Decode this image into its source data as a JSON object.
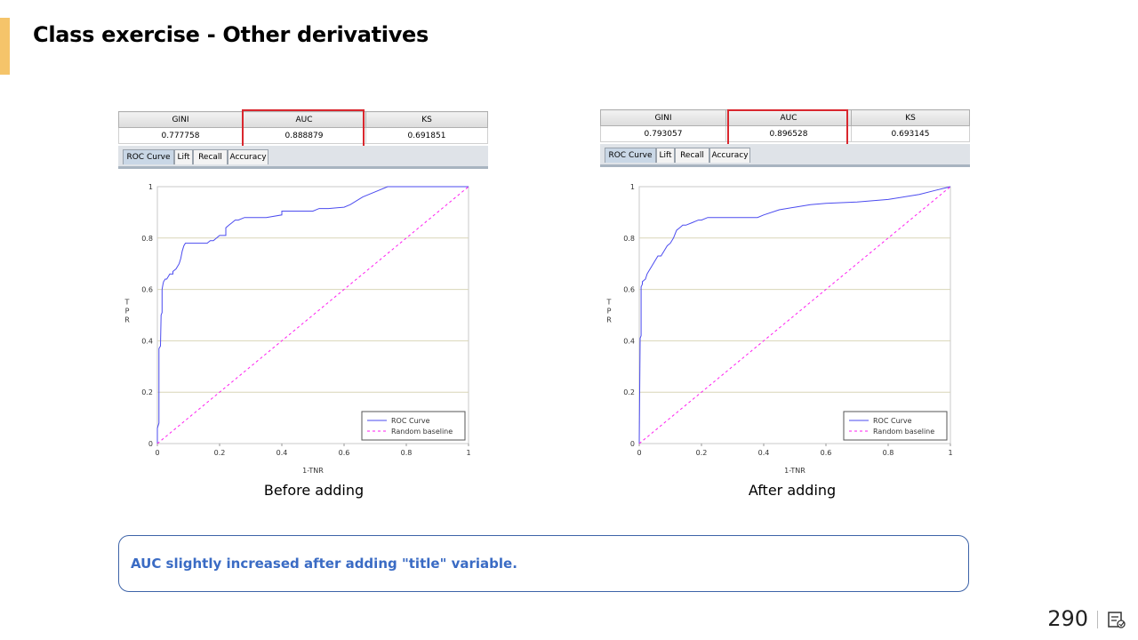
{
  "slide": {
    "title": "Class exercise - Other derivatives",
    "page_number": "290"
  },
  "panels": [
    {
      "caption": "Before adding",
      "metrics": {
        "headers": [
          "GINI",
          "AUC",
          "KS"
        ],
        "values": [
          "0.777758",
          "0.888879",
          "0.691851"
        ]
      },
      "tabs": [
        "ROC Curve",
        "Lift",
        "Recall",
        "Accuracy"
      ],
      "active_tab": "ROC Curve"
    },
    {
      "caption": "After adding",
      "metrics": {
        "headers": [
          "GINI",
          "AUC",
          "KS"
        ],
        "values": [
          "0.793057",
          "0.896528",
          "0.693145"
        ]
      },
      "tabs": [
        "ROC Curve",
        "Lift",
        "Recall",
        "Accuracy"
      ],
      "active_tab": "ROC Curve"
    }
  ],
  "note": {
    "text": "AUC slightly increased after adding \"title\" variable."
  },
  "colors": {
    "accent_bar": "#f5c46a",
    "highlight": "#d9272e",
    "roc_curve": "#4b4bef",
    "baseline": "#ff1ff0",
    "note_text": "#3a6bc4"
  },
  "chart_data": [
    {
      "type": "line",
      "xlabel": "1-TNR",
      "ylabel": "TPR",
      "xlim": [
        0,
        1
      ],
      "ylim": [
        0,
        1
      ],
      "xticks": [
        "0",
        "0.2",
        "0.4",
        "0.6",
        "0.8",
        "1"
      ],
      "yticks": [
        "0",
        "0.2",
        "0.4",
        "0.6",
        "0.8",
        "1"
      ],
      "grid": "horizontal",
      "legend_position": "bottom-right",
      "series": [
        {
          "name": "ROC Curve",
          "style": "solid",
          "x": [
            0,
            0,
            0.005,
            0.005,
            0.01,
            0.012,
            0.015,
            0.015,
            0.018,
            0.02,
            0.025,
            0.03,
            0.04,
            0.05,
            0.05,
            0.06,
            0.07,
            0.075,
            0.08,
            0.085,
            0.09,
            0.1,
            0.12,
            0.16,
            0.17,
            0.18,
            0.2,
            0.22,
            0.22,
            0.23,
            0.24,
            0.25,
            0.26,
            0.28,
            0.32,
            0.35,
            0.4,
            0.4,
            0.45,
            0.5,
            0.52,
            0.55,
            0.6,
            0.62,
            0.66,
            0.7,
            0.74,
            0.8,
            0.9,
            0.95,
            1.0
          ],
          "y": [
            0,
            0.06,
            0.08,
            0.37,
            0.38,
            0.5,
            0.51,
            0.6,
            0.62,
            0.63,
            0.64,
            0.64,
            0.66,
            0.66,
            0.67,
            0.68,
            0.7,
            0.72,
            0.75,
            0.77,
            0.78,
            0.78,
            0.78,
            0.78,
            0.79,
            0.79,
            0.81,
            0.81,
            0.84,
            0.85,
            0.86,
            0.87,
            0.87,
            0.88,
            0.88,
            0.88,
            0.89,
            0.905,
            0.905,
            0.905,
            0.915,
            0.915,
            0.92,
            0.93,
            0.96,
            0.98,
            1.0,
            1.0,
            1.0,
            1.0,
            1.0
          ]
        },
        {
          "name": "Random baseline",
          "style": "dashed",
          "x": [
            0,
            1
          ],
          "y": [
            0,
            1
          ]
        }
      ]
    },
    {
      "type": "line",
      "xlabel": "1-TNR",
      "ylabel": "TPR",
      "xlim": [
        0,
        1
      ],
      "ylim": [
        0,
        1
      ],
      "xticks": [
        "0",
        "0.2",
        "0.4",
        "0.6",
        "0.8",
        "1"
      ],
      "yticks": [
        "0",
        "0.2",
        "0.4",
        "0.6",
        "0.8",
        "1"
      ],
      "grid": "horizontal",
      "legend_position": "bottom-right",
      "series": [
        {
          "name": "ROC Curve",
          "style": "solid",
          "x": [
            0,
            0.003,
            0.003,
            0.006,
            0.006,
            0.01,
            0.01,
            0.02,
            0.025,
            0.03,
            0.04,
            0.05,
            0.06,
            0.07,
            0.08,
            0.09,
            0.1,
            0.11,
            0.12,
            0.13,
            0.14,
            0.15,
            0.17,
            0.19,
            0.2,
            0.22,
            0.25,
            0.3,
            0.38,
            0.4,
            0.45,
            0.5,
            0.55,
            0.6,
            0.7,
            0.8,
            0.9,
            0.95,
            1.0
          ],
          "y": [
            0,
            0.4,
            0.41,
            0.42,
            0.61,
            0.62,
            0.63,
            0.64,
            0.66,
            0.67,
            0.69,
            0.71,
            0.73,
            0.73,
            0.75,
            0.77,
            0.78,
            0.8,
            0.83,
            0.84,
            0.85,
            0.85,
            0.86,
            0.87,
            0.87,
            0.88,
            0.88,
            0.88,
            0.88,
            0.89,
            0.91,
            0.92,
            0.93,
            0.935,
            0.94,
            0.95,
            0.97,
            0.985,
            1.0
          ]
        },
        {
          "name": "Random baseline",
          "style": "dashed",
          "x": [
            0,
            1
          ],
          "y": [
            0,
            1
          ]
        }
      ]
    }
  ]
}
